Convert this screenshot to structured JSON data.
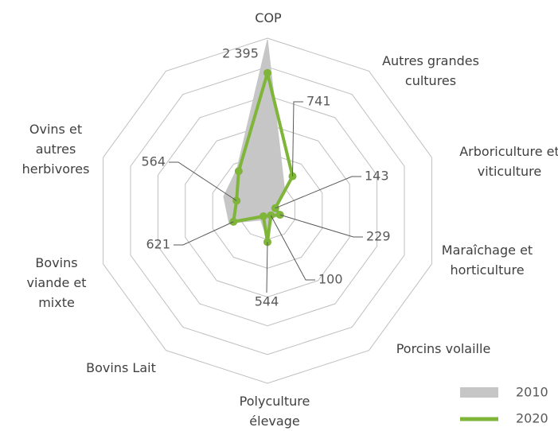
{
  "chart_data": {
    "type": "radar",
    "categories": [
      "COP",
      "Autres grandes cultures",
      "Arboriculture et viticulture",
      "Maraîchage et horticulture",
      "Porcins volaille",
      "Polyculture élevage",
      "Bovins Lait",
      "Bovins viande et mixte",
      "Ovins et autres herbivores",
      null
    ],
    "series": [
      {
        "name": "2010",
        "color": "#c6c6c6",
        "fill": true,
        "values": [
          2975,
          500,
          150,
          250,
          150,
          500,
          200,
          700,
          800,
          900
        ]
      },
      {
        "name": "2020",
        "color": "#7fb539",
        "fill": false,
        "values": [
          2395,
          741,
          143,
          229,
          100,
          544,
          120,
          621,
          564,
          850
        ],
        "value_labels": [
          "2 395",
          "741",
          "143",
          "229",
          "100",
          "544",
          null,
          "621",
          "564",
          null
        ]
      }
    ],
    "ylim": [
      0,
      3000
    ],
    "yticks": [
      0,
      500,
      1000,
      1500,
      2000,
      2500,
      3000
    ],
    "grid": true,
    "legend": "bottom-right"
  }
}
